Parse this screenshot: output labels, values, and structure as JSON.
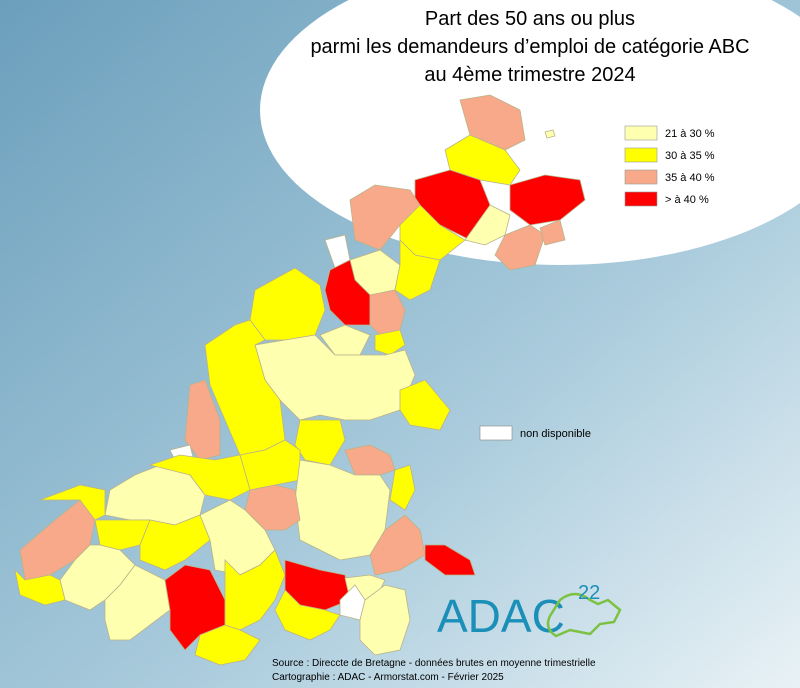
{
  "title": {
    "lines": [
      "Part des 50 ans ou plus",
      "parmi les demandeurs d’emploi de catégorie ABC",
      "au 4ème trimestre 2024"
    ]
  },
  "legend": {
    "items": [
      {
        "label": "21 à 30 %",
        "color": "#ffffb0"
      },
      {
        "label": "30 à 35 %",
        "color": "#ffff00"
      },
      {
        "label": "35 à 40 %",
        "color": "#f7a98a"
      },
      {
        "label": "> à 40 %",
        "color": "#ff0000"
      }
    ],
    "missing": {
      "label": "non disponible",
      "color": "#ffffff"
    }
  },
  "logo": {
    "text": "ADAC",
    "number": "22"
  },
  "footer": {
    "lines": [
      "Source : Direccte de Bretagne - données brutes en moyenne trimestrielle",
      "Cartographie : ADAC - Armorstat.com - Février 2025"
    ]
  }
}
